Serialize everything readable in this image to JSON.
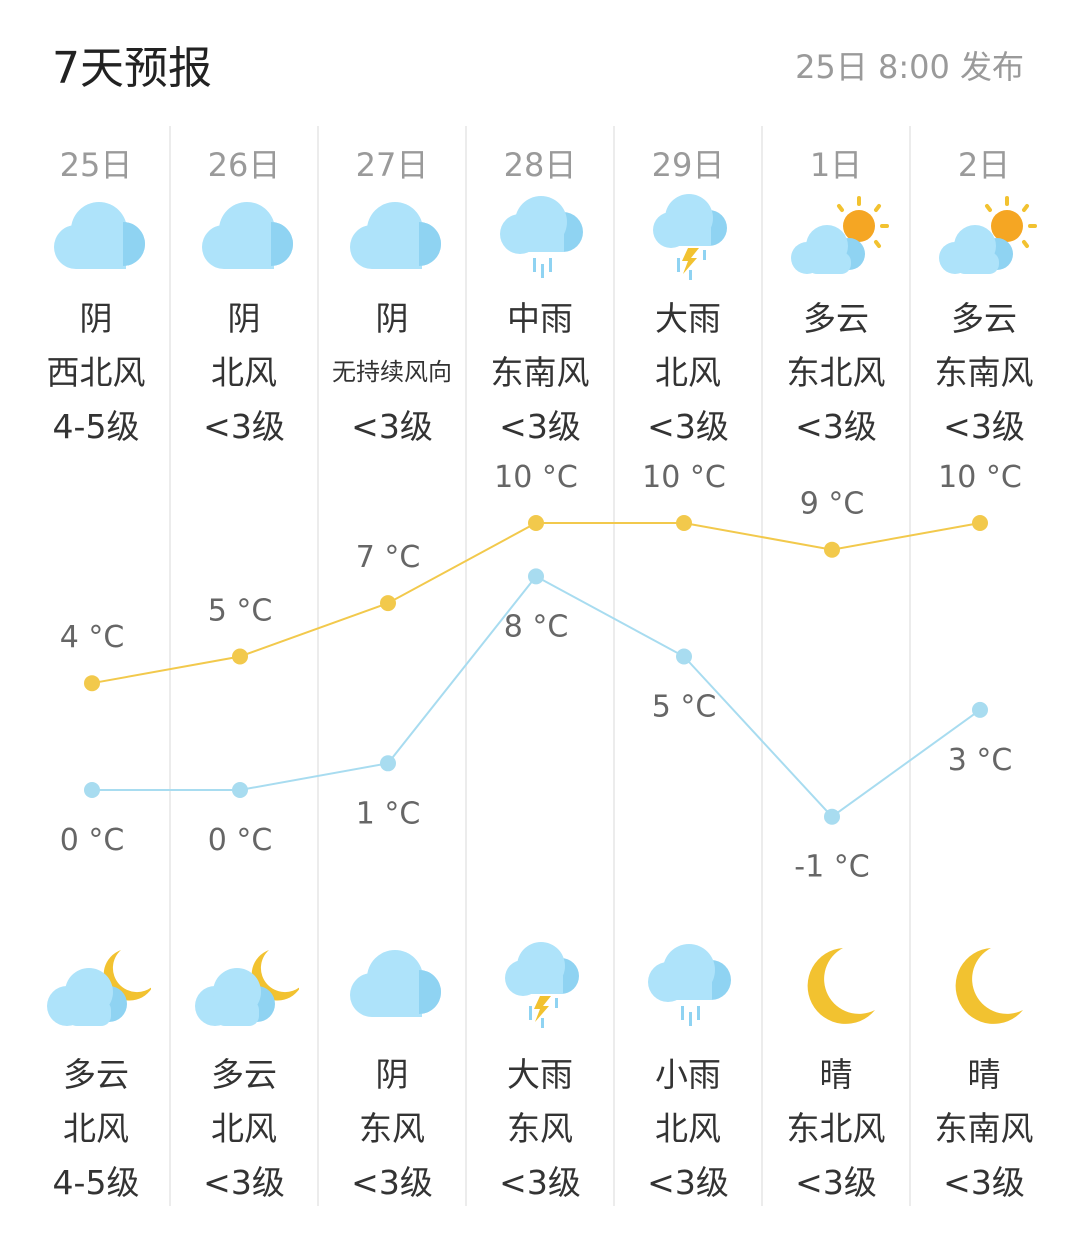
{
  "header": {
    "title": "7天预报",
    "published": "25日 8:00 发布"
  },
  "colors": {
    "high_line": "#f2c94c",
    "low_line": "#a8dcf0",
    "cloud": "#aee3fa",
    "cloud_dark": "#8fd3f2",
    "sun": "#f5a623",
    "moon": "#f2c230"
  },
  "days": [
    {
      "date": "25日",
      "day_icon": "cloud-icon",
      "day_weather": "阴",
      "day_wind_dir": "西北风",
      "day_wind_level": "4-5级",
      "high": "4 °C",
      "low": "0 °C",
      "night_icon": "moon-cloud-icon",
      "night_weather": "多云",
      "night_wind_dir": "北风",
      "night_wind_level": "4-5级"
    },
    {
      "date": "26日",
      "day_icon": "cloud-icon",
      "day_weather": "阴",
      "day_wind_dir": "北风",
      "day_wind_level": "<3级",
      "high": "5 °C",
      "low": "0 °C",
      "night_icon": "moon-cloud-icon",
      "night_weather": "多云",
      "night_wind_dir": "北风",
      "night_wind_level": "<3级"
    },
    {
      "date": "27日",
      "day_icon": "cloud-icon",
      "day_weather": "阴",
      "day_wind_dir": "无持续风向",
      "day_wind_level": "<3级",
      "high": "7 °C",
      "low": "1 °C",
      "night_icon": "cloud-icon",
      "night_weather": "阴",
      "night_wind_dir": "东风",
      "night_wind_level": "<3级"
    },
    {
      "date": "28日",
      "day_icon": "rain-cloud-icon",
      "day_weather": "中雨",
      "day_wind_dir": "东南风",
      "day_wind_level": "<3级",
      "high": "10 °C",
      "low": "8 °C",
      "night_icon": "thunder-rain-icon",
      "night_weather": "大雨",
      "night_wind_dir": "东风",
      "night_wind_level": "<3级"
    },
    {
      "date": "29日",
      "day_icon": "thunder-rain-icon",
      "day_weather": "大雨",
      "day_wind_dir": "北风",
      "day_wind_level": "<3级",
      "high": "10 °C",
      "low": "5 °C",
      "night_icon": "rain-cloud-icon",
      "night_weather": "小雨",
      "night_wind_dir": "北风",
      "night_wind_level": "<3级"
    },
    {
      "date": "1日",
      "day_icon": "sun-cloud-icon",
      "day_weather": "多云",
      "day_wind_dir": "东北风",
      "day_wind_level": "<3级",
      "high": "9 °C",
      "low": "-1 °C",
      "night_icon": "moon-icon",
      "night_weather": "晴",
      "night_wind_dir": "东北风",
      "night_wind_level": "<3级"
    },
    {
      "date": "2日",
      "day_icon": "sun-cloud-icon",
      "day_weather": "多云",
      "day_wind_dir": "东南风",
      "day_wind_level": "<3级",
      "high": "10 °C",
      "low": "3 °C",
      "night_icon": "moon-icon",
      "night_weather": "晴",
      "night_wind_dir": "东南风",
      "night_wind_level": "<3级"
    }
  ],
  "chart_data": {
    "type": "line",
    "categories": [
      "25日",
      "26日",
      "27日",
      "28日",
      "29日",
      "1日",
      "2日"
    ],
    "series": [
      {
        "values": [
          4,
          5,
          7,
          10,
          10,
          9,
          10
        ]
      },
      {
        "values": [
          0,
          0,
          1,
          8,
          5,
          -1,
          3
        ]
      }
    ],
    "unit": "°C"
  }
}
